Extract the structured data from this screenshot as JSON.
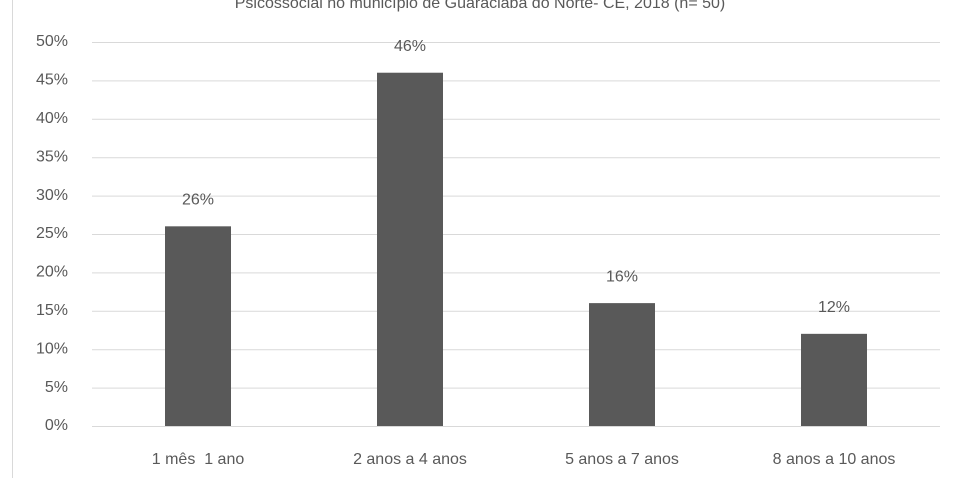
{
  "chart_data": {
    "type": "bar",
    "title": "Psicossocial no município de Guaraciaba do Norte- CE, 2018 (n= 50)",
    "categories": [
      "1 mês  1 ano",
      "2 anos a 4 anos",
      "5 anos a 7 anos",
      "8 anos a 10 anos"
    ],
    "values": [
      26,
      46,
      16,
      12
    ],
    "value_labels": [
      "26%",
      "46%",
      "16%",
      "12%"
    ],
    "color": "#595959",
    "ylim": [
      0,
      50
    ],
    "yticks": [
      {
        "value": 0,
        "label": "0%"
      },
      {
        "value": 5,
        "label": "5%"
      },
      {
        "value": 10,
        "label": "10%"
      },
      {
        "value": 15,
        "label": "15%"
      },
      {
        "value": 20,
        "label": "20%"
      },
      {
        "value": 25,
        "label": "25%"
      },
      {
        "value": 30,
        "label": "30%"
      },
      {
        "value": 35,
        "label": "35%"
      },
      {
        "value": 40,
        "label": "40%"
      },
      {
        "value": 45,
        "label": "45%"
      },
      {
        "value": 50,
        "label": "50%"
      }
    ],
    "grid": true
  }
}
